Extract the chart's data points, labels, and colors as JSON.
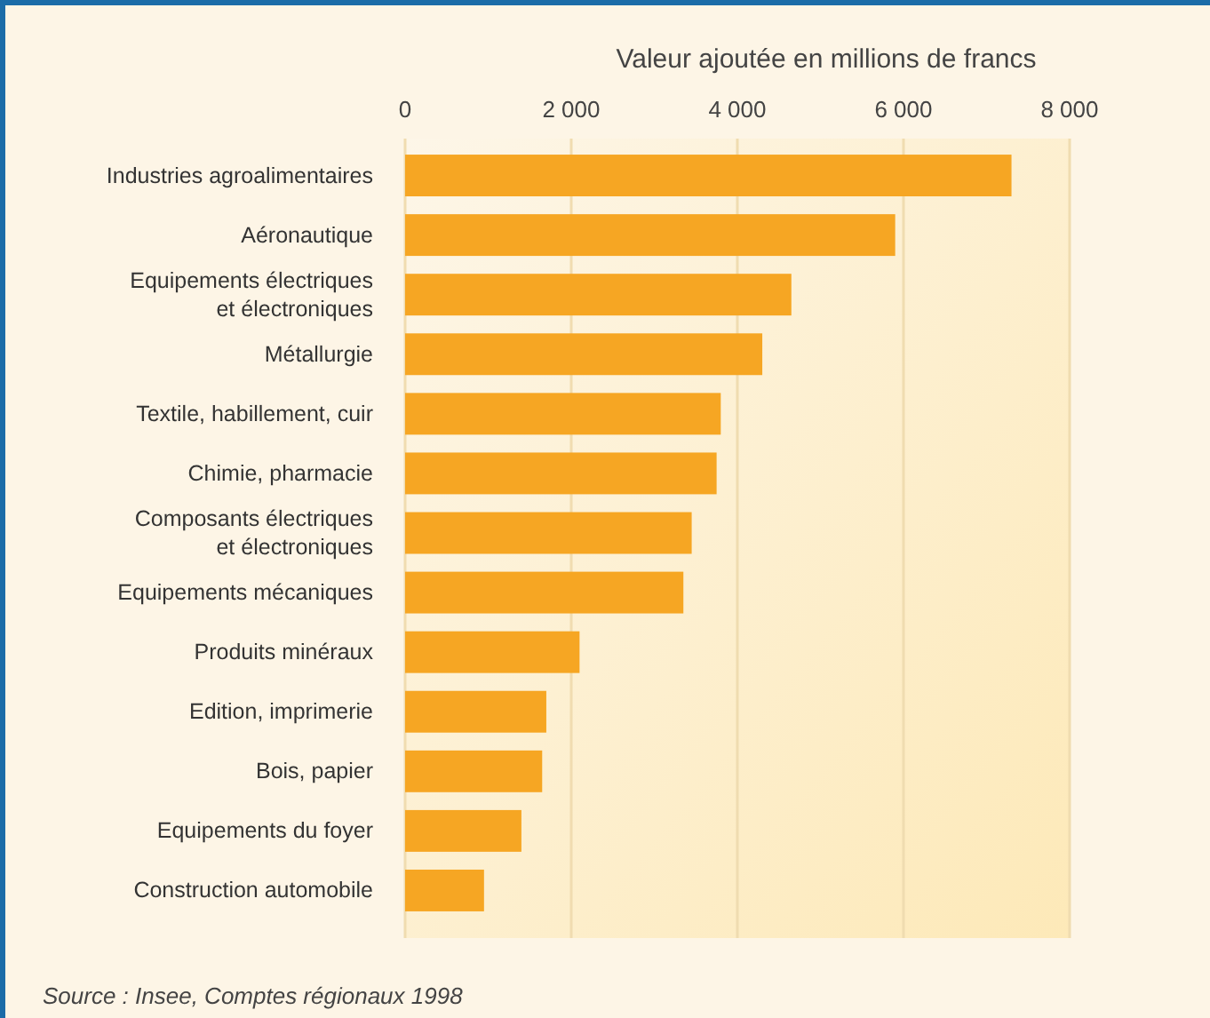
{
  "chart_data": {
    "type": "bar",
    "orientation": "horizontal",
    "xlabel": "Valeur ajoutée en millions de francs",
    "categories": [
      "Industries agroalimentaires",
      "Aéronautique",
      "Equipements électriques\net électroniques",
      "Métallurgie",
      "Textile, habillement, cuir",
      "Chimie, pharmacie",
      "Composants électriques\net électroniques",
      "Equipements mécaniques",
      "Produits minéraux",
      "Edition, imprimerie",
      "Bois, papier",
      "Equipements du foyer",
      "Construction automobile"
    ],
    "values": [
      7300,
      5900,
      4650,
      4300,
      3800,
      3750,
      3450,
      3350,
      2100,
      1700,
      1650,
      1400,
      950
    ],
    "color": "#f6a623",
    "xlim": [
      0,
      8000
    ],
    "xticks": [
      0,
      {
        "value": 2000,
        "label": "2 000"
      },
      {
        "value": 4000,
        "label": "4 000"
      },
      {
        "value": 6000,
        "label": "6 000"
      },
      {
        "value": 8000,
        "label": "8 000"
      }
    ],
    "grid": "x",
    "annotations": [
      "Source : Insee, Comptes régionaux 1998"
    ]
  }
}
